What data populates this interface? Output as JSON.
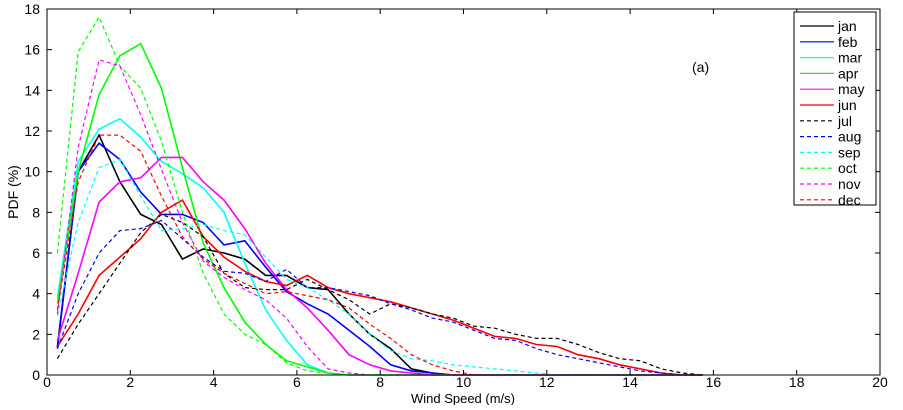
{
  "chart_data": {
    "type": "line",
    "title": "",
    "annotation": "(a)",
    "xlabel": "Wind Speed (m/s)",
    "ylabel": "PDF (%)",
    "xlim": [
      0,
      20
    ],
    "ylim": [
      0,
      18
    ],
    "xticks": [
      "0",
      "2",
      "4",
      "6",
      "8",
      "10",
      "12",
      "14",
      "16",
      "18",
      "20"
    ],
    "yticks": [
      "0",
      "2",
      "4",
      "6",
      "8",
      "10",
      "12",
      "14",
      "16",
      "18"
    ],
    "grid": false,
    "legend_position": "top-right",
    "x_start": 0.25,
    "x_step": 0.5,
    "series": [
      {
        "name": "jan",
        "color": "#000000",
        "dashed": false,
        "values": [
          1.4,
          10,
          11.8,
          9.5,
          7.9,
          7.4,
          5.7,
          6.2,
          6.0,
          5.7,
          4.9,
          4.9,
          4.3,
          4.2,
          3.0,
          2.0,
          1.3,
          0.3,
          0.1,
          0,
          0,
          0,
          0,
          0,
          0,
          0,
          0,
          0,
          0,
          0,
          0,
          0
        ]
      },
      {
        "name": "feb",
        "color": "#0000ff",
        "dashed": false,
        "values": [
          1.3,
          10,
          11.4,
          10.6,
          9.0,
          7.9,
          7.9,
          7.5,
          6.4,
          6.6,
          5.3,
          4.1,
          3.5,
          3.0,
          2.2,
          1.4,
          0.5,
          0.2,
          0.1,
          0,
          0,
          0,
          0,
          0,
          0,
          0,
          0,
          0,
          0,
          0,
          0,
          0
        ]
      },
      {
        "name": "mar",
        "color": "#00ffff",
        "dashed": false,
        "values": [
          3.8,
          10.5,
          12.1,
          12.6,
          11.7,
          10.5,
          9.9,
          9.2,
          8.0,
          5.5,
          3.2,
          1.7,
          0.5,
          0.1,
          0,
          0,
          0,
          0,
          0,
          0,
          0,
          0,
          0,
          0,
          0,
          0,
          0,
          0,
          0,
          0,
          0,
          0
        ]
      },
      {
        "name": "apr",
        "color": "#00ff00",
        "dashed": false,
        "values": [
          3.5,
          10,
          13.8,
          15.7,
          16.3,
          14.1,
          10.2,
          6.5,
          4.3,
          2.6,
          1.5,
          0.7,
          0.4,
          0.1,
          0,
          0,
          0,
          0,
          0,
          0,
          0,
          0,
          0,
          0,
          0,
          0,
          0,
          0,
          0,
          0,
          0,
          0
        ]
      },
      {
        "name": "may",
        "color": "#ff00ff",
        "dashed": false,
        "values": [
          1.7,
          5,
          8.5,
          9.5,
          9.7,
          10.7,
          10.7,
          9.5,
          8.6,
          7.2,
          5.5,
          4.2,
          3.3,
          2.2,
          1.0,
          0.5,
          0.2,
          0.1,
          0,
          0,
          0,
          0,
          0,
          0,
          0,
          0,
          0,
          0,
          0,
          0,
          0,
          0
        ]
      },
      {
        "name": "jun",
        "color": "#ff0000",
        "dashed": false,
        "values": [
          1.4,
          3.0,
          4.9,
          5.8,
          6.7,
          8.0,
          8.6,
          6.8,
          5.8,
          5.1,
          4.6,
          4.4,
          4.9,
          4.3,
          4.0,
          3.8,
          3.6,
          3.3,
          3.0,
          2.7,
          2.3,
          1.9,
          1.8,
          1.5,
          1.4,
          1.0,
          0.8,
          0.5,
          0.3,
          0.1,
          0,
          0
        ]
      },
      {
        "name": "jul",
        "color": "#000000",
        "dashed": true,
        "values": [
          0.8,
          2.5,
          4.0,
          5.5,
          7.0,
          7.9,
          7.5,
          6.8,
          5.0,
          4.3,
          4.2,
          4.2,
          4.7,
          4.2,
          3.7,
          3.0,
          3.5,
          3.3,
          3.0,
          2.8,
          2.4,
          2.3,
          2.0,
          1.8,
          1.8,
          1.5,
          1.1,
          0.8,
          0.7,
          0.3,
          0.1,
          0
        ]
      },
      {
        "name": "aug",
        "color": "#0000ff",
        "dashed": true,
        "values": [
          1.3,
          4.0,
          6.0,
          7.1,
          7.2,
          7.6,
          6.7,
          5.8,
          5.1,
          5.0,
          4.6,
          5.2,
          4.3,
          4.3,
          4.1,
          3.9,
          3.5,
          3.2,
          2.8,
          2.6,
          2.2,
          1.8,
          1.7,
          1.3,
          1.0,
          0.8,
          0.6,
          0.4,
          0.2,
          0.1,
          0,
          0
        ]
      },
      {
        "name": "sep",
        "color": "#00ffff",
        "dashed": true,
        "values": [
          2.9,
          7.5,
          10.2,
          10.6,
          8.8,
          7.1,
          7.2,
          7.4,
          7.1,
          6.9,
          5.8,
          4.7,
          4.3,
          3.7,
          3.0,
          2.0,
          1.2,
          0.8,
          0.7,
          0.5,
          0.4,
          0.3,
          0.2,
          0.1,
          0,
          0,
          0,
          0,
          0,
          0,
          0,
          0
        ]
      },
      {
        "name": "oct",
        "color": "#00ff00",
        "dashed": true,
        "values": [
          6,
          15.9,
          17.6,
          15.2,
          14.1,
          11.5,
          8.0,
          5.0,
          3.0,
          2.0,
          1.5,
          0.6,
          0.2,
          0.1,
          0,
          0,
          0,
          0,
          0,
          0,
          0,
          0,
          0,
          0,
          0,
          0,
          0,
          0,
          0,
          0,
          0,
          0
        ]
      },
      {
        "name": "nov",
        "color": "#ff00ff",
        "dashed": true,
        "values": [
          3.0,
          11.2,
          15.5,
          15.2,
          12.8,
          10.1,
          7.5,
          5.6,
          4.8,
          4.2,
          3.7,
          2.8,
          1.4,
          0.3,
          0.1,
          0,
          0,
          0,
          0,
          0,
          0,
          0,
          0,
          0,
          0,
          0,
          0,
          0,
          0,
          0,
          0,
          0
        ]
      },
      {
        "name": "dec",
        "color": "#ff0000",
        "dashed": true,
        "values": [
          3.2,
          9.5,
          11.8,
          11.8,
          11.0,
          8.8,
          6.8,
          5.7,
          5.0,
          4.5,
          4.0,
          4.1,
          3.9,
          3.7,
          3.3,
          2.5,
          1.8,
          1.0,
          0.5,
          0.2,
          0,
          0,
          0,
          0,
          0,
          0,
          0,
          0,
          0,
          0,
          0,
          0
        ]
      }
    ]
  }
}
